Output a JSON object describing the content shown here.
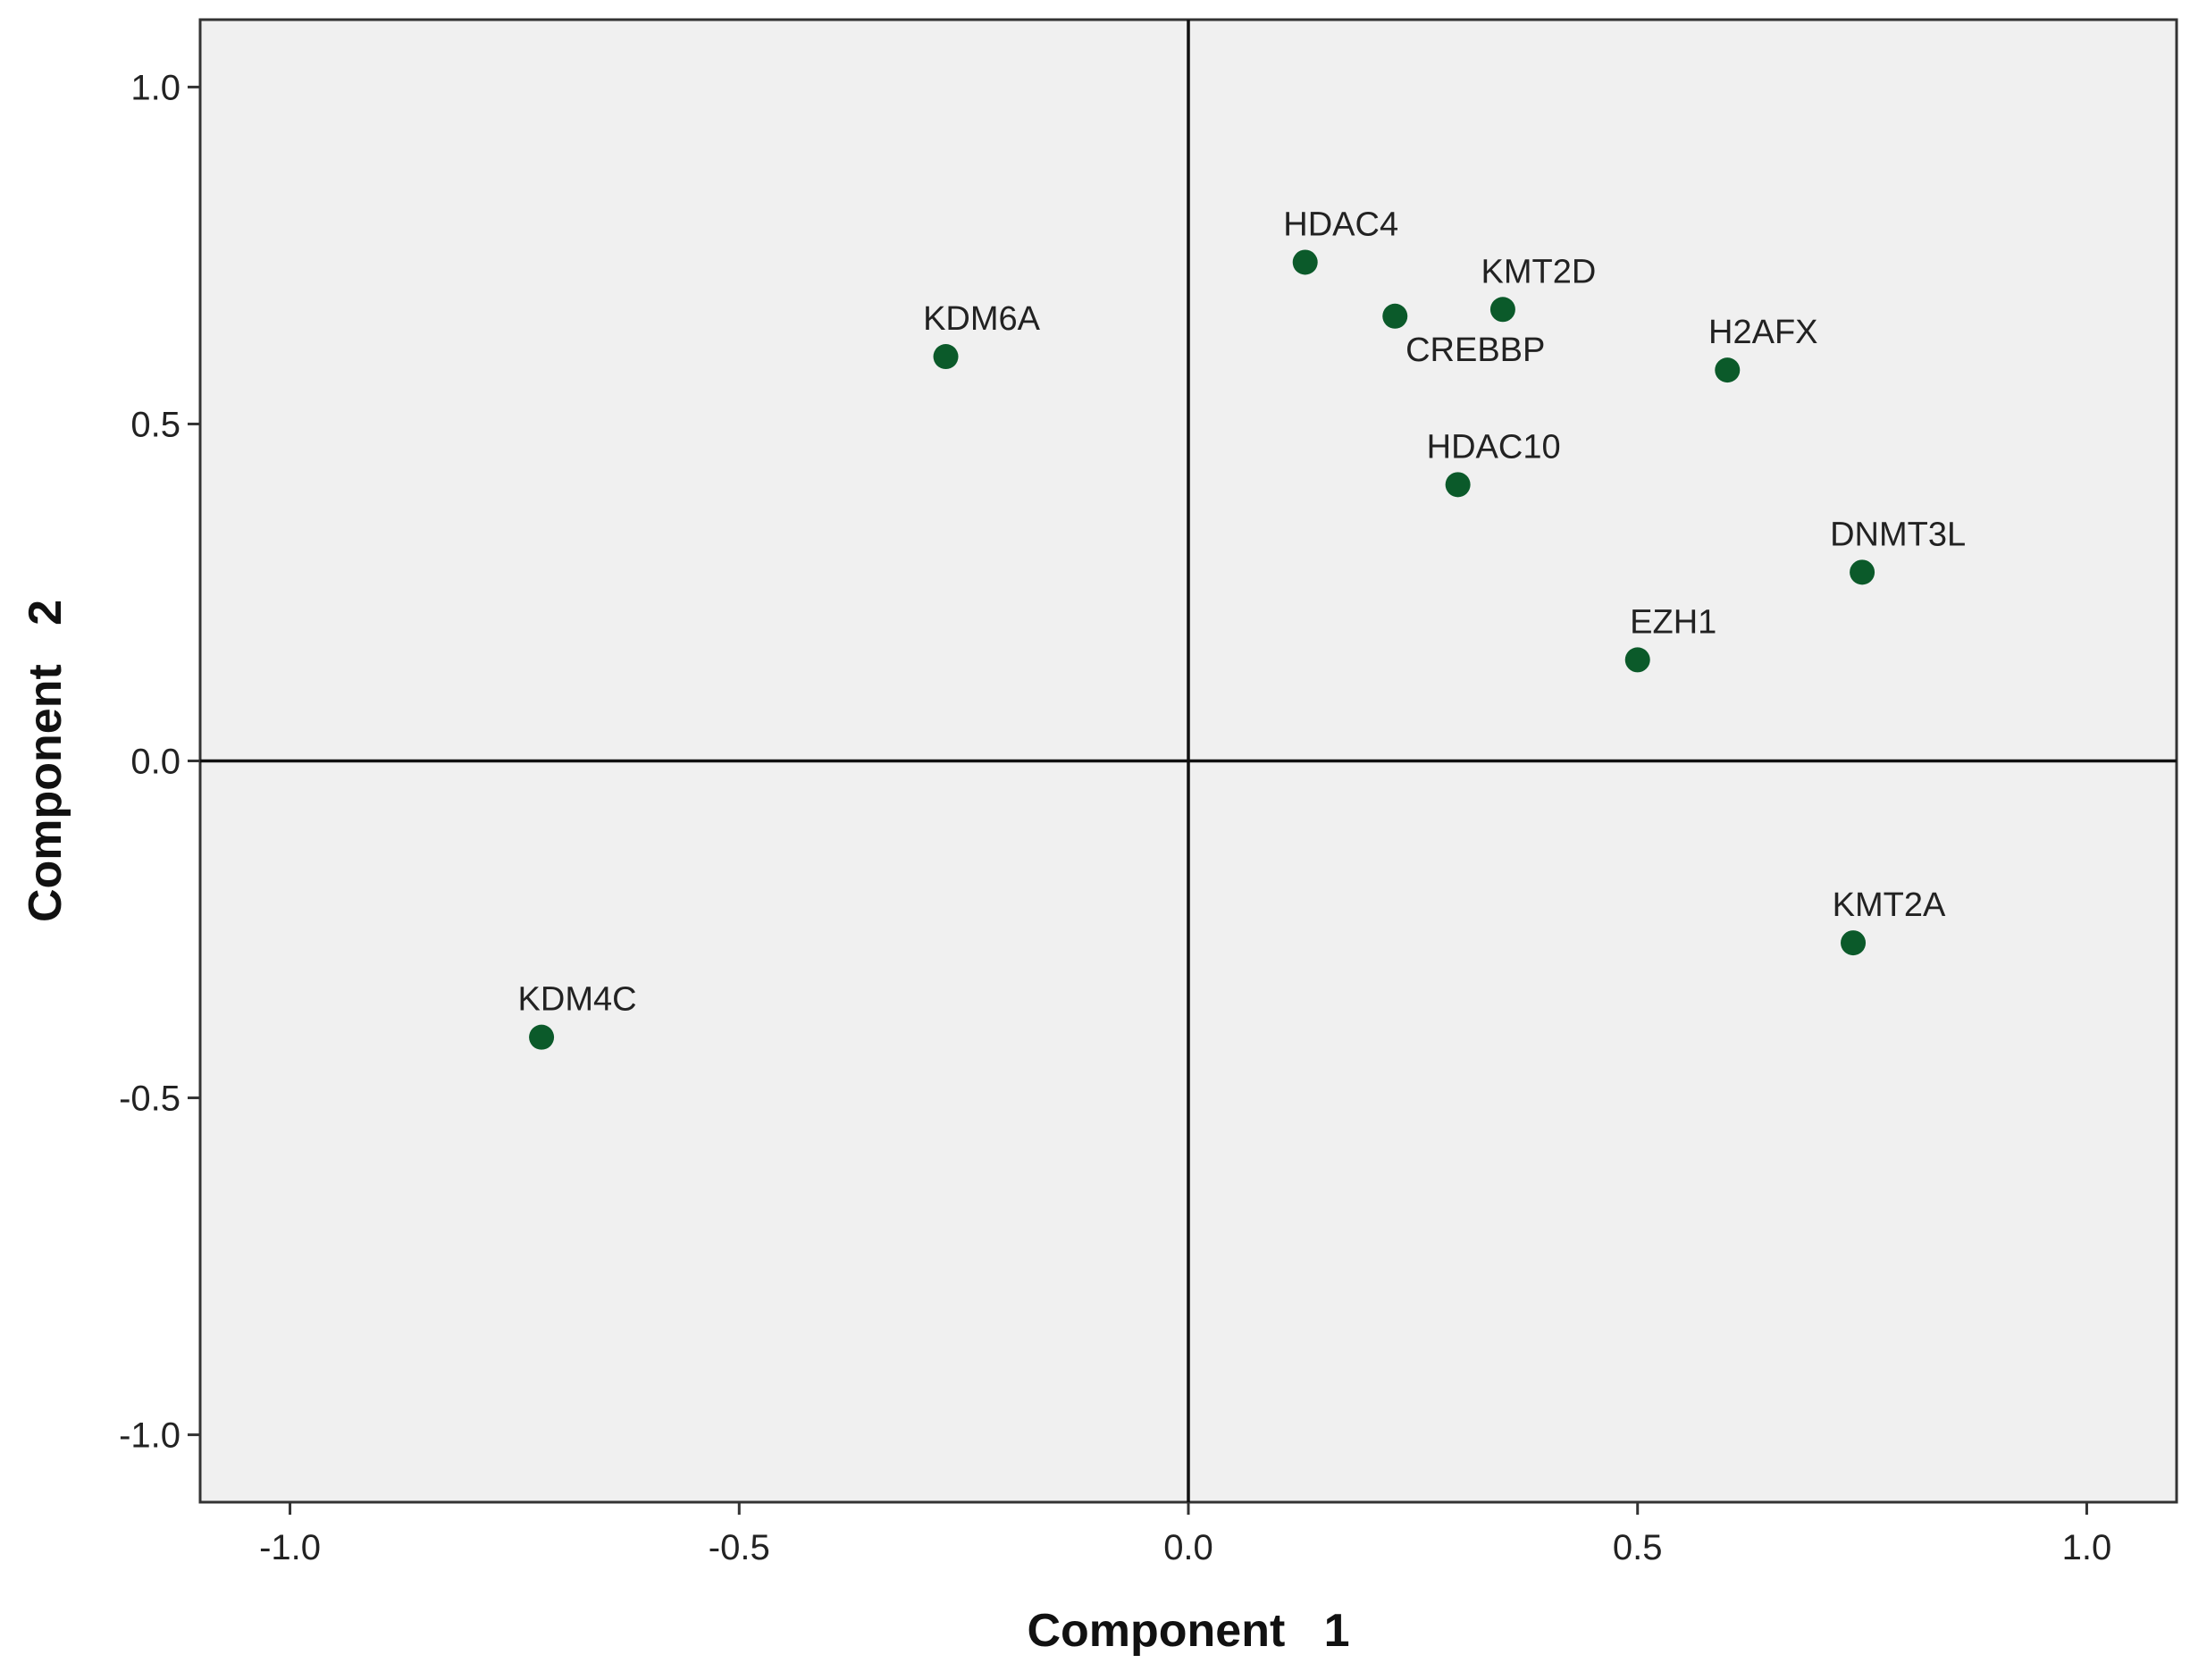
{
  "chart_data": {
    "type": "scatter",
    "title": "",
    "xlabel": "Component   1",
    "ylabel": "Component   2",
    "xlim": [
      -1.1,
      1.1
    ],
    "ylim": [
      -1.1,
      1.1
    ],
    "x_ticks": [
      -1.0,
      -0.5,
      0.0,
      0.5,
      1.0
    ],
    "x_tick_labels": [
      "-1.0",
      "-0.5",
      "0.0",
      "0.5",
      "1.0"
    ],
    "y_ticks": [
      1.0,
      0.5,
      0.0,
      -0.5,
      -1.0
    ],
    "y_tick_labels": [
      "1.0",
      "0.5",
      "0.0",
      "-0.5",
      "-1.0"
    ],
    "grid": false,
    "reference_lines": {
      "x": 0,
      "y": 0
    },
    "colors": {
      "point": "#0b5a2a",
      "plot_background": "#f0f0f0",
      "frame": "#333333"
    },
    "points": [
      {
        "label": "HDAC4",
        "x": 0.13,
        "y": 0.74
      },
      {
        "label": "KMT2D",
        "x": 0.35,
        "y": 0.67
      },
      {
        "label": "CREBBP",
        "x": 0.23,
        "y": 0.66
      },
      {
        "label": "KDM6A",
        "x": -0.27,
        "y": 0.6
      },
      {
        "label": "H2AFX",
        "x": 0.6,
        "y": 0.58
      },
      {
        "label": "HDAC10",
        "x": 0.3,
        "y": 0.41
      },
      {
        "label": "DNMT3L",
        "x": 0.75,
        "y": 0.28
      },
      {
        "label": "EZH1",
        "x": 0.5,
        "y": 0.15
      },
      {
        "label": "KMT2A",
        "x": 0.74,
        "y": -0.27
      },
      {
        "label": "KDM4C",
        "x": -0.72,
        "y": -0.41
      }
    ]
  }
}
